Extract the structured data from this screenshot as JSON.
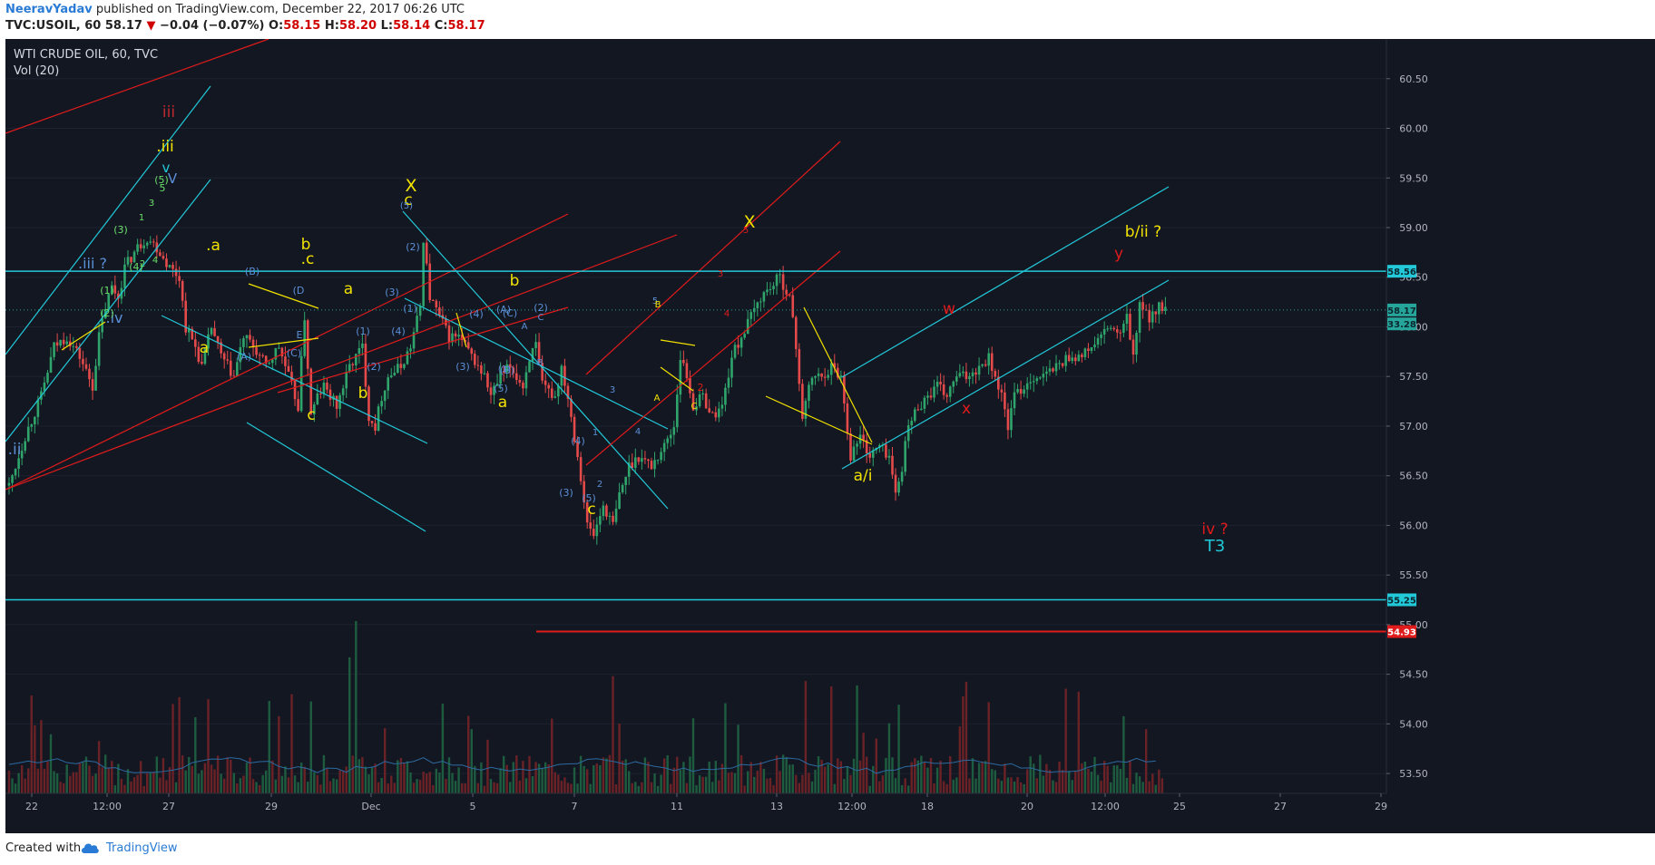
{
  "header": {
    "author": "NeeravYadav",
    "published_text": "published on TradingView.com, December 22, 2017 06:26 UTC",
    "symbol": "TVC:USOIL, 60",
    "last": "58.17",
    "change": "−0.04 (−0.07%)",
    "o_label": "O:",
    "o_val": "58.15",
    "h_label": "H:",
    "h_val": "58.20",
    "l_label": "L:",
    "l_val": "58.14",
    "c_label": "C:",
    "c_val": "58.17"
  },
  "legend": {
    "title": "WTI CRUDE OIL, 60, TVC",
    "indicator": "Vol (20)"
  },
  "footer": {
    "created_with": "Created with",
    "brand": "TradingView"
  },
  "colors": {
    "background": "#131722",
    "up": "#2fa56c",
    "down": "#e44a4a",
    "cyan": "#22c9d9",
    "red": "#e01b1b",
    "yellow": "#f2e200",
    "blue_label": "#5b8fd6",
    "green_label": "#6ae06a"
  },
  "chart_data": {
    "type": "candlestick",
    "title": "WTI CRUDE OIL, 60, TVC",
    "y_axis_ticks": [
      "60.50",
      "60.00",
      "59.50",
      "59.00",
      "58.50",
      "58.00",
      "57.50",
      "57.00",
      "56.50",
      "56.00",
      "55.50",
      "55.00",
      "54.50",
      "54.00",
      "53.50"
    ],
    "x_axis_ticks": [
      "22",
      "12:00",
      "27",
      "29",
      "Dec",
      "5",
      "7",
      "11",
      "13",
      "12:00",
      "18",
      "20",
      "12:00",
      "25",
      "27",
      "29"
    ],
    "ylim": [
      53.3,
      60.9
    ],
    "price_tags": [
      {
        "label": "58.56",
        "value": 58.56,
        "color": "#22c9d9"
      },
      {
        "label": "58.17",
        "value": 58.17,
        "color": "#26a69a"
      },
      {
        "label": "33.28",
        "value": 58.03,
        "color": "#26a69a"
      },
      {
        "label": "55.25",
        "value": 55.25,
        "color": "#22c9d9"
      },
      {
        "label": "54.93",
        "value": 54.93,
        "color": "#e01b1b"
      }
    ],
    "horizontal_lines": [
      {
        "value": 58.56,
        "color": "#22c9d9"
      },
      {
        "value": 55.25,
        "color": "#22c9d9"
      },
      {
        "value": 54.93,
        "color": "#e01b1b",
        "from_index": 170
      }
    ],
    "price_path": [
      [
        0,
        56.4
      ],
      [
        5,
        56.9
      ],
      [
        10,
        57.3
      ],
      [
        14,
        57.8
      ],
      [
        18,
        57.9
      ],
      [
        22,
        57.7
      ],
      [
        26,
        57.4
      ],
      [
        28,
        57.9
      ],
      [
        30,
        58.2
      ],
      [
        32,
        58.4
      ],
      [
        34,
        58.3
      ],
      [
        36,
        58.6
      ],
      [
        40,
        58.8
      ],
      [
        43,
        58.9
      ],
      [
        46,
        58.8
      ],
      [
        50,
        58.6
      ],
      [
        53,
        58.5
      ],
      [
        55,
        58.0
      ],
      [
        58,
        57.8
      ],
      [
        60,
        57.6
      ],
      [
        63,
        58.0
      ],
      [
        66,
        57.7
      ],
      [
        70,
        57.5
      ],
      [
        73,
        57.9
      ],
      [
        76,
        57.8
      ],
      [
        80,
        57.6
      ],
      [
        84,
        57.8
      ],
      [
        87,
        57.5
      ],
      [
        90,
        57.2
      ],
      [
        92,
        58.1
      ],
      [
        94,
        57.1
      ],
      [
        96,
        57.3
      ],
      [
        98,
        57.4
      ],
      [
        102,
        57.2
      ],
      [
        106,
        57.6
      ],
      [
        110,
        57.8
      ],
      [
        112,
        57.1
      ],
      [
        114,
        57.0
      ],
      [
        116,
        57.3
      ],
      [
        118,
        57.5
      ],
      [
        122,
        57.6
      ],
      [
        125,
        57.8
      ],
      [
        128,
        58.2
      ],
      [
        129,
        58.9
      ],
      [
        131,
        58.3
      ],
      [
        134,
        58.1
      ],
      [
        137,
        57.9
      ],
      [
        140,
        57.9
      ],
      [
        144,
        57.7
      ],
      [
        148,
        57.5
      ],
      [
        150,
        57.3
      ],
      [
        153,
        57.5
      ],
      [
        156,
        57.6
      ],
      [
        160,
        57.4
      ],
      [
        162,
        57.7
      ],
      [
        164,
        57.8
      ],
      [
        166,
        57.4
      ],
      [
        170,
        57.3
      ],
      [
        172,
        57.6
      ],
      [
        174,
        57.3
      ],
      [
        176,
        56.9
      ],
      [
        178,
        56.5
      ],
      [
        180,
        56.0
      ],
      [
        182,
        55.9
      ],
      [
        185,
        56.2
      ],
      [
        188,
        56.0
      ],
      [
        190,
        56.3
      ],
      [
        193,
        56.6
      ],
      [
        196,
        56.7
      ],
      [
        200,
        56.6
      ],
      [
        204,
        56.8
      ],
      [
        207,
        57.0
      ],
      [
        209,
        57.7
      ],
      [
        211,
        57.5
      ],
      [
        213,
        57.2
      ],
      [
        216,
        57.3
      ],
      [
        219,
        57.1
      ],
      [
        222,
        57.2
      ],
      [
        225,
        57.7
      ],
      [
        228,
        57.9
      ],
      [
        231,
        58.1
      ],
      [
        234,
        58.3
      ],
      [
        237,
        58.4
      ],
      [
        240,
        58.5
      ],
      [
        243,
        58.3
      ],
      [
        245,
        57.8
      ],
      [
        247,
        57.1
      ],
      [
        250,
        57.5
      ],
      [
        253,
        57.5
      ],
      [
        256,
        57.6
      ],
      [
        259,
        57.5
      ],
      [
        262,
        56.7
      ],
      [
        265,
        56.9
      ],
      [
        268,
        56.7
      ],
      [
        271,
        56.8
      ],
      [
        274,
        56.7
      ],
      [
        276,
        56.3
      ],
      [
        278,
        56.6
      ],
      [
        280,
        57.0
      ],
      [
        283,
        57.2
      ],
      [
        286,
        57.3
      ],
      [
        289,
        57.4
      ],
      [
        292,
        57.3
      ],
      [
        295,
        57.5
      ],
      [
        298,
        57.5
      ],
      [
        302,
        57.6
      ],
      [
        305,
        57.7
      ],
      [
        307,
        57.5
      ],
      [
        309,
        57.3
      ],
      [
        311,
        57.0
      ],
      [
        313,
        57.3
      ],
      [
        316,
        57.4
      ],
      [
        319,
        57.5
      ],
      [
        322,
        57.5
      ],
      [
        326,
        57.6
      ],
      [
        330,
        57.7
      ],
      [
        334,
        57.7
      ],
      [
        337,
        57.8
      ],
      [
        340,
        57.9
      ],
      [
        343,
        58.0
      ],
      [
        346,
        57.9
      ],
      [
        348,
        58.1
      ],
      [
        350,
        57.7
      ],
      [
        352,
        58.2
      ],
      [
        355,
        58.1
      ],
      [
        358,
        58.2
      ],
      [
        360,
        58.17
      ]
    ],
    "wave_labels": [
      {
        "text": ".ii",
        "color": "yellow_blue"
      },
      {
        "text": ".iii ?"
      },
      {
        "text": ".iv"
      },
      {
        "text": "iii"
      },
      {
        "text": ".iii"
      },
      {
        "text": "v"
      },
      {
        "text": "V"
      },
      {
        "text": "(5)"
      },
      {
        "text": "5"
      },
      {
        "text": "3"
      },
      {
        "text": "1"
      },
      {
        "text": "(3)"
      },
      {
        "text": "(4)"
      },
      {
        "text": "2"
      },
      {
        "text": "4"
      },
      {
        "text": "(1)"
      },
      {
        "text": "(2)"
      },
      {
        "text": ".a"
      },
      {
        "text": "a"
      },
      {
        "text": "(B)"
      },
      {
        "text": "(A)"
      },
      {
        "text": "(C)"
      },
      {
        "text": "(D"
      },
      {
        "text": "E"
      },
      {
        "text": "b"
      },
      {
        "text": ".c"
      },
      {
        "text": "c"
      },
      {
        "text": "a"
      },
      {
        "text": "b"
      },
      {
        "text": "(1)"
      },
      {
        "text": "(2)"
      },
      {
        "text": "(3)"
      },
      {
        "text": "(4)"
      },
      {
        "text": "X"
      },
      {
        "text": "c"
      },
      {
        "text": "(5)"
      },
      {
        "text": "(2)"
      },
      {
        "text": "(1)"
      },
      {
        "text": "(3)"
      },
      {
        "text": "(4)"
      },
      {
        "text": "(5)"
      },
      {
        "text": "a"
      },
      {
        "text": "b"
      },
      {
        "text": "(A)"
      },
      {
        "text": "(C)"
      },
      {
        "text": "(B)"
      },
      {
        "text": "(2)"
      },
      {
        "text": "C"
      },
      {
        "text": "A"
      },
      {
        "text": "B"
      },
      {
        "text": "(1)"
      },
      {
        "text": "(4)"
      },
      {
        "text": "(3)"
      },
      {
        "text": "(5)"
      },
      {
        "text": "c"
      },
      {
        "text": "1"
      },
      {
        "text": "2"
      },
      {
        "text": "3"
      },
      {
        "text": "4"
      },
      {
        "text": "5"
      },
      {
        "text": "B"
      },
      {
        "text": "A"
      },
      {
        "text": "C"
      },
      {
        "text": "X"
      },
      {
        "text": "5"
      },
      {
        "text": "3"
      },
      {
        "text": "4"
      },
      {
        "text": "2"
      },
      {
        "text": "a/i"
      },
      {
        "text": "w"
      },
      {
        "text": "x"
      },
      {
        "text": "y"
      },
      {
        "text": "b/ii ?"
      },
      {
        "text": "iv ?"
      },
      {
        "text": "T3"
      }
    ]
  }
}
